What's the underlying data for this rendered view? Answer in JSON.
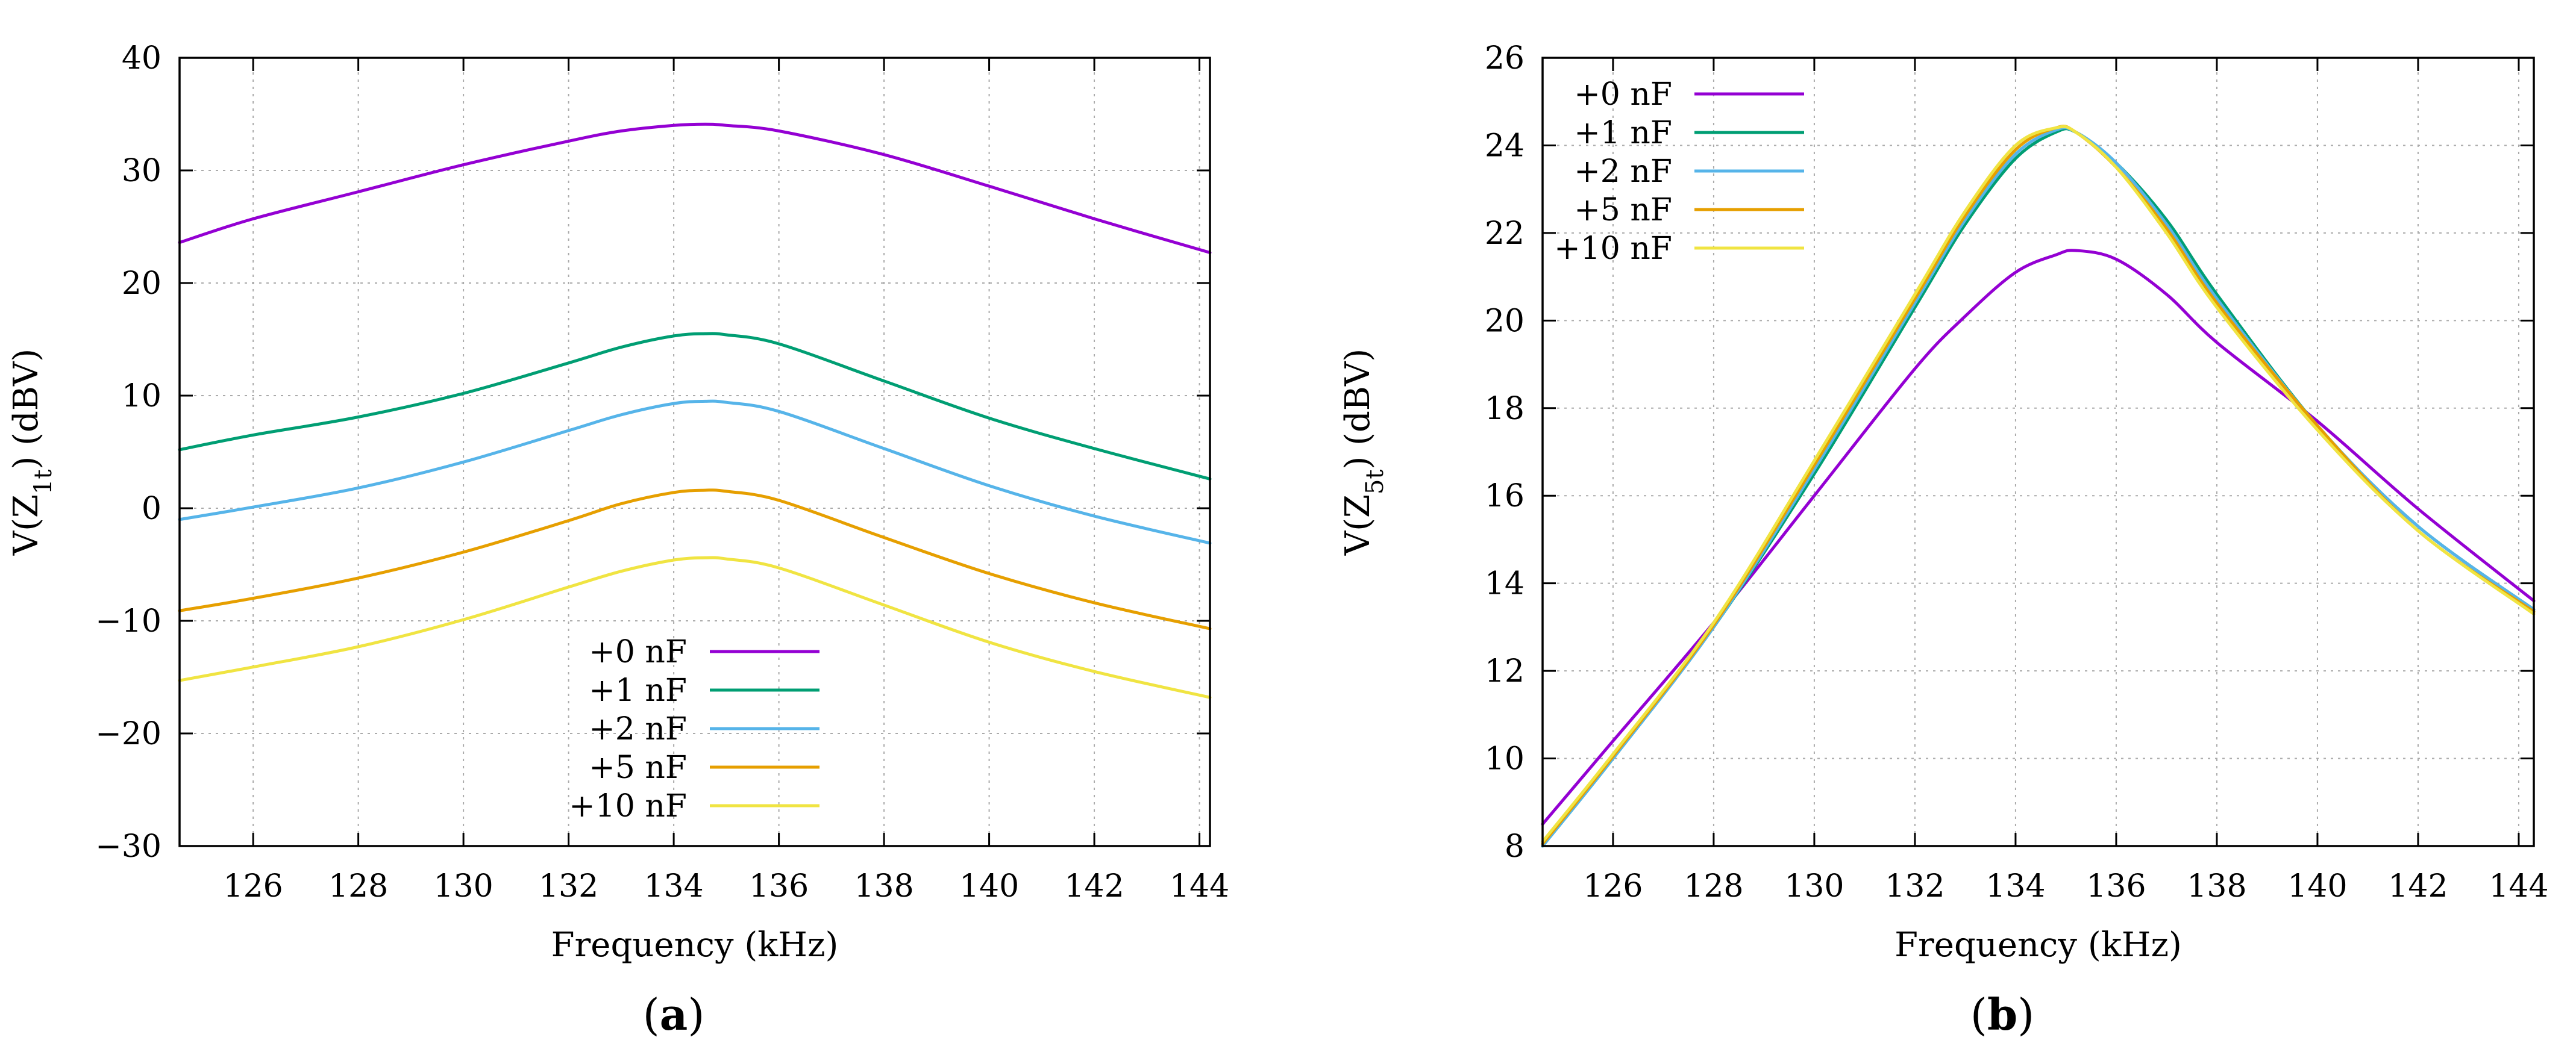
{
  "chart_data": [
    {
      "type": "line",
      "panel_label": "a",
      "title": "",
      "xlabel": "Frequency (kHz)",
      "ylabel_main": "V(Z",
      "ylabel_sub": "1t",
      "ylabel_tail": ") (dBV)",
      "xlim": [
        124.6,
        144.2
      ],
      "ylim": [
        -30,
        40
      ],
      "xticks": [
        "126",
        "128",
        "130",
        "132",
        "134",
        "136",
        "138",
        "140",
        "142",
        "144"
      ],
      "yticks": [
        "−30",
        "−20",
        "−10",
        "0",
        "10",
        "20",
        "30",
        "40"
      ],
      "grid": true,
      "legend_position": "bottom-center",
      "x": [
        124.6,
        126,
        128,
        130,
        132,
        133,
        134,
        134.6,
        135,
        136,
        138,
        140,
        142,
        144.2
      ],
      "series": [
        {
          "name": "+0 nF",
          "color": "#9400d3",
          "values": [
            23.6,
            25.7,
            28.1,
            30.5,
            32.6,
            33.5,
            34.0,
            34.1,
            34.0,
            33.5,
            31.4,
            28.6,
            25.7,
            22.7
          ]
        },
        {
          "name": "+1 nF",
          "color": "#009e73",
          "values": [
            5.2,
            6.5,
            8.1,
            10.2,
            12.9,
            14.3,
            15.3,
            15.5,
            15.4,
            14.6,
            11.3,
            8.0,
            5.3,
            2.6
          ]
        },
        {
          "name": "+2 nF",
          "color": "#56b4e9",
          "values": [
            -1.0,
            0.1,
            1.8,
            4.1,
            6.9,
            8.3,
            9.3,
            9.5,
            9.4,
            8.6,
            5.3,
            2.0,
            -0.7,
            -3.1
          ]
        },
        {
          "name": "+5 nF",
          "color": "#e69f00",
          "values": [
            -9.1,
            -8.0,
            -6.2,
            -3.9,
            -1.1,
            0.4,
            1.4,
            1.6,
            1.5,
            0.7,
            -2.6,
            -5.8,
            -8.4,
            -10.7
          ]
        },
        {
          "name": "+10 nF",
          "color": "#f0e442",
          "values": [
            -15.3,
            -14.1,
            -12.3,
            -9.9,
            -7.0,
            -5.6,
            -4.6,
            -4.4,
            -4.5,
            -5.3,
            -8.6,
            -11.9,
            -14.5,
            -16.8
          ]
        }
      ]
    },
    {
      "type": "line",
      "panel_label": "b",
      "title": "",
      "xlabel": "Frequency (kHz)",
      "ylabel_main": "V(Z",
      "ylabel_sub": "5t",
      "ylabel_tail": ") (dBV)",
      "xlim": [
        124.6,
        144.3
      ],
      "ylim": [
        8,
        26
      ],
      "xticks": [
        "126",
        "128",
        "130",
        "132",
        "134",
        "136",
        "138",
        "140",
        "142",
        "144"
      ],
      "yticks": [
        "8",
        "10",
        "12",
        "14",
        "16",
        "18",
        "20",
        "22",
        "24",
        "26"
      ],
      "grid": true,
      "legend_position": "top-left",
      "x": [
        124.6,
        126,
        128,
        130,
        132,
        133,
        134,
        134.8,
        135.2,
        136,
        137,
        138,
        140,
        142,
        144.3
      ],
      "series": [
        {
          "name": "+0 nF",
          "color": "#9400d3",
          "values": [
            8.5,
            10.4,
            13.1,
            16.0,
            18.9,
            20.1,
            21.1,
            21.5,
            21.6,
            21.4,
            20.6,
            19.5,
            17.7,
            15.7,
            13.6
          ]
        },
        {
          "name": "+1 nF",
          "color": "#009e73",
          "values": [
            8.0,
            10.0,
            13.0,
            16.5,
            20.3,
            22.2,
            23.7,
            24.3,
            24.3,
            23.6,
            22.3,
            20.6,
            17.6,
            15.3,
            13.4
          ]
        },
        {
          "name": "+2 nF",
          "color": "#56b4e9",
          "values": [
            8.0,
            10.0,
            13.0,
            16.6,
            20.4,
            22.3,
            23.8,
            24.35,
            24.3,
            23.6,
            22.2,
            20.5,
            17.6,
            15.3,
            13.4
          ]
        },
        {
          "name": "+5 nF",
          "color": "#e69f00",
          "values": [
            8.05,
            10.05,
            13.05,
            16.7,
            20.5,
            22.4,
            23.9,
            24.4,
            24.3,
            23.5,
            22.1,
            20.4,
            17.6,
            15.2,
            13.35
          ]
        },
        {
          "name": "+10 nF",
          "color": "#f0e442",
          "values": [
            8.1,
            10.1,
            13.1,
            16.8,
            20.6,
            22.5,
            24.0,
            24.4,
            24.3,
            23.5,
            22.0,
            20.3,
            17.5,
            15.2,
            13.3
          ]
        }
      ]
    }
  ]
}
